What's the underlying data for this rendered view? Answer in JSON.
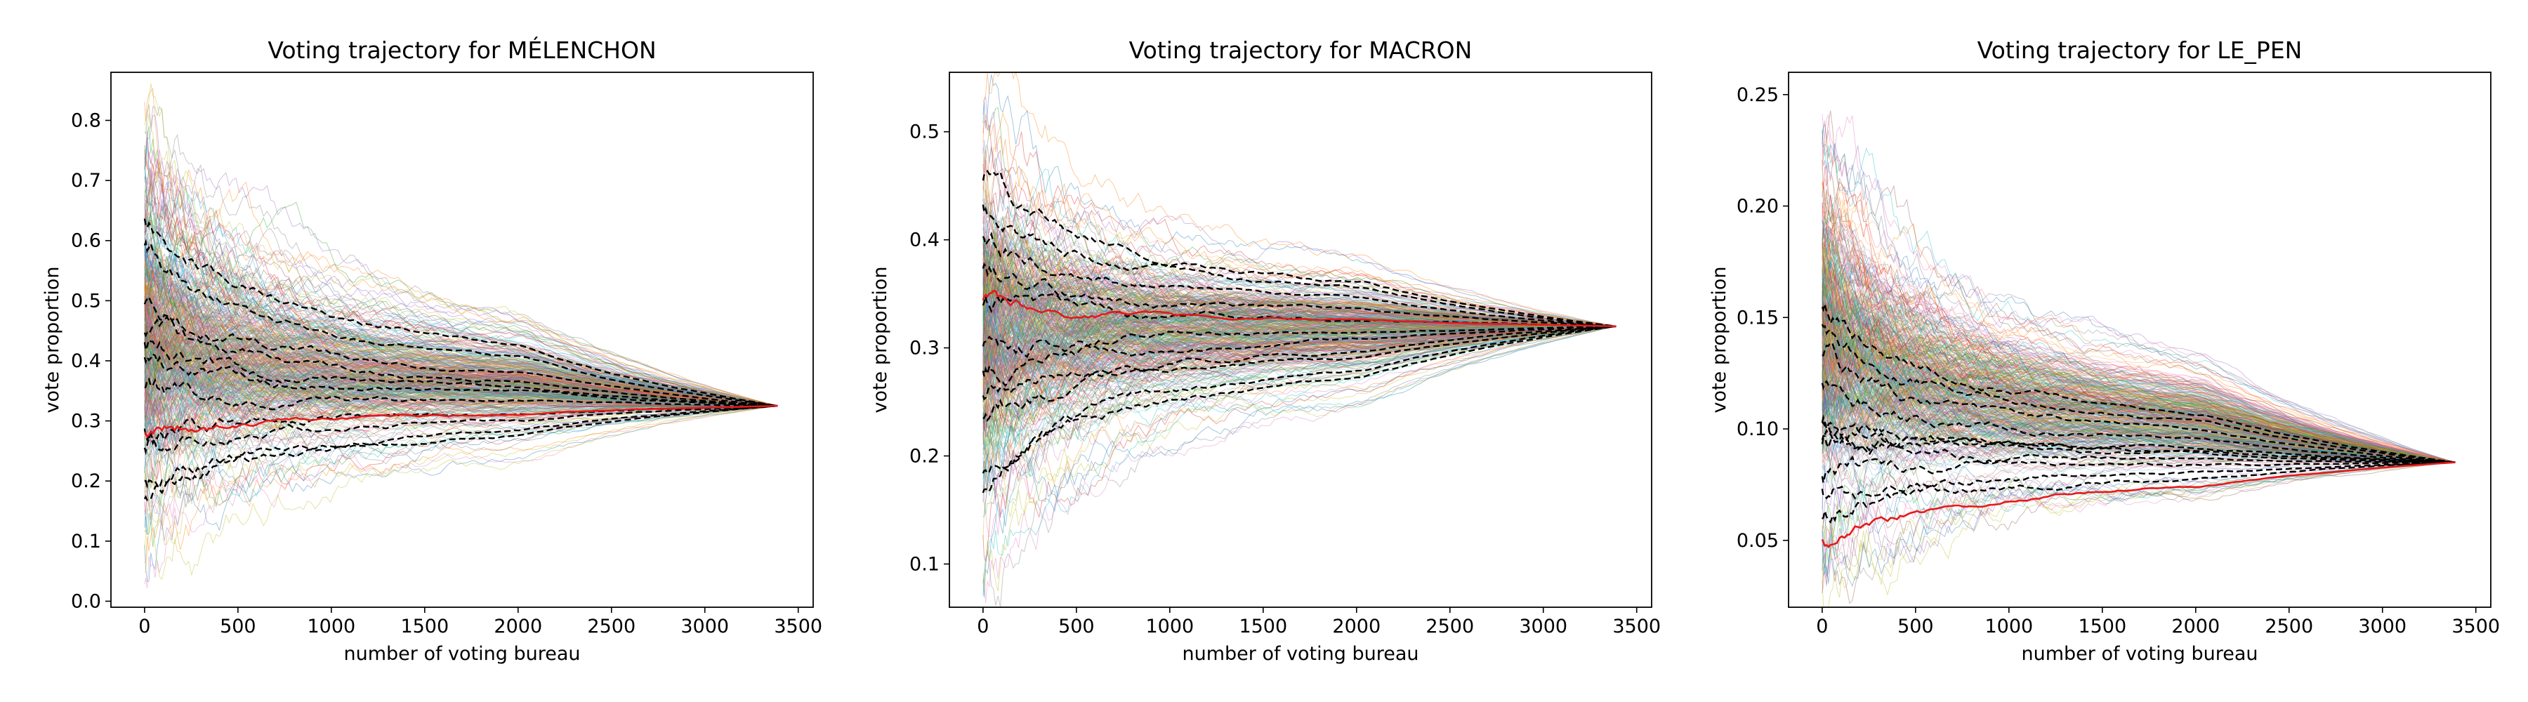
{
  "chart_data": [
    {
      "type": "line",
      "title": "Voting trajectory for MÉLENCHON",
      "xlabel": "number of voting bureau",
      "ylabel": "vote proportion",
      "xlim": [
        -180,
        3580
      ],
      "ylim": [
        -0.01,
        0.88
      ],
      "xticks": [
        0,
        500,
        1000,
        1500,
        2000,
        2500,
        3000,
        3500
      ],
      "yticks": [
        0.0,
        0.1,
        0.2,
        0.3,
        0.4,
        0.5,
        0.6,
        0.7,
        0.8
      ],
      "ytick_labels": [
        "0.0",
        "0.1",
        "0.2",
        "0.3",
        "0.4",
        "0.5",
        "0.6",
        "0.7",
        "0.8"
      ],
      "final_value": 0.325,
      "x_end": 3390,
      "envelope_top": [
        [
          0,
          0.84
        ],
        [
          100,
          0.62
        ],
        [
          300,
          0.55
        ],
        [
          700,
          0.5
        ],
        [
          1200,
          0.45
        ],
        [
          1800,
          0.4
        ],
        [
          2500,
          0.35
        ],
        [
          3390,
          0.325
        ]
      ],
      "envelope_bottom": [
        [
          0,
          0.04
        ],
        [
          100,
          0.07
        ],
        [
          300,
          0.11
        ],
        [
          700,
          0.15
        ],
        [
          1200,
          0.2
        ],
        [
          1800,
          0.24
        ],
        [
          2500,
          0.29
        ],
        [
          3390,
          0.325
        ]
      ],
      "black_dashed_starts": [
        0.64,
        0.58,
        0.5,
        0.45,
        0.42,
        0.4,
        0.35,
        0.28,
        0.25,
        0.2,
        0.17
      ],
      "red_start": 0.28,
      "grid": false,
      "legend": "none"
    },
    {
      "type": "line",
      "title": "Voting trajectory for MACRON",
      "xlabel": "number of voting bureau",
      "ylabel": "vote proportion",
      "xlim": [
        -180,
        3580
      ],
      "ylim": [
        0.06,
        0.555
      ],
      "xticks": [
        0,
        500,
        1000,
        1500,
        2000,
        2500,
        3000,
        3500
      ],
      "yticks": [
        0.1,
        0.2,
        0.3,
        0.4,
        0.5
      ],
      "ytick_labels": [
        "0.1",
        "0.2",
        "0.3",
        "0.4",
        "0.5"
      ],
      "final_value": 0.32,
      "x_end": 3390,
      "envelope_top": [
        [
          0,
          0.535
        ],
        [
          100,
          0.49
        ],
        [
          300,
          0.47
        ],
        [
          700,
          0.45
        ],
        [
          1200,
          0.42
        ],
        [
          1800,
          0.39
        ],
        [
          2500,
          0.35
        ],
        [
          3390,
          0.32
        ]
      ],
      "envelope_bottom": [
        [
          0,
          0.08
        ],
        [
          100,
          0.13
        ],
        [
          300,
          0.17
        ],
        [
          700,
          0.2
        ],
        [
          1200,
          0.23
        ],
        [
          1800,
          0.26
        ],
        [
          2500,
          0.29
        ],
        [
          3390,
          0.32
        ]
      ],
      "black_dashed_starts": [
        0.45,
        0.43,
        0.4,
        0.37,
        0.34,
        0.3,
        0.28,
        0.25,
        0.23,
        0.19,
        0.17
      ],
      "red_start": 0.34,
      "grid": false,
      "legend": "none"
    },
    {
      "type": "line",
      "title": "Voting trajectory for LE_PEN",
      "xlabel": "number of voting bureau",
      "ylabel": "vote proportion",
      "xlim": [
        -180,
        3580
      ],
      "ylim": [
        0.02,
        0.26
      ],
      "xticks": [
        0,
        500,
        1000,
        1500,
        2000,
        2500,
        3000,
        3500
      ],
      "yticks": [
        0.05,
        0.1,
        0.15,
        0.2,
        0.25
      ],
      "ytick_labels": [
        "0.05",
        "0.10",
        "0.15",
        "0.20",
        "0.25"
      ],
      "final_value": 0.085,
      "x_end": 3390,
      "envelope_top": [
        [
          0,
          0.25
        ],
        [
          100,
          0.19
        ],
        [
          300,
          0.16
        ],
        [
          700,
          0.14
        ],
        [
          1200,
          0.12
        ],
        [
          1800,
          0.105
        ],
        [
          2500,
          0.095
        ],
        [
          3390,
          0.085
        ]
      ],
      "envelope_bottom": [
        [
          0,
          0.03
        ],
        [
          100,
          0.037
        ],
        [
          300,
          0.043
        ],
        [
          700,
          0.05
        ],
        [
          1200,
          0.058
        ],
        [
          1800,
          0.066
        ],
        [
          2500,
          0.075
        ],
        [
          3390,
          0.085
        ]
      ],
      "black_dashed_starts": [
        0.155,
        0.145,
        0.13,
        0.12,
        0.105,
        0.1,
        0.095,
        0.09,
        0.08,
        0.07,
        0.06
      ],
      "red_start": 0.05,
      "grid": false,
      "legend": "none"
    }
  ],
  "colors": {
    "thin_lines": [
      "#1f77b4",
      "#ff7f0e",
      "#2ca02c",
      "#d62728",
      "#9467bd",
      "#8c564b",
      "#e377c2",
      "#7f7f7f",
      "#bcbd22",
      "#17becf"
    ],
    "highlight": "#e41a1c",
    "reference": "#000000"
  }
}
